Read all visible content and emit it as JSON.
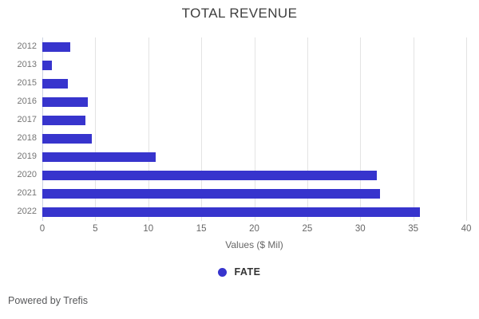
{
  "title": "TOTAL REVENUE",
  "footer_text": "Powered by Trefis",
  "colors": {
    "bar": "#3734cd",
    "grid": "#e3e3e3",
    "zero_axis": "#ccd3e3",
    "title_text": "#3e3e3e",
    "tick_text": "#666666",
    "y_label_text": "#757575"
  },
  "legend": {
    "label": "FATE",
    "dot_icon": "circle"
  },
  "chart_data": {
    "type": "bar",
    "orientation": "horizontal",
    "title": "TOTAL REVENUE",
    "categories": [
      "2012",
      "2013",
      "2015",
      "2016",
      "2017",
      "2018",
      "2019",
      "2020",
      "2021",
      "2022"
    ],
    "series": [
      {
        "name": "FATE",
        "values": [
          2.6,
          0.9,
          2.4,
          4.3,
          4.1,
          4.7,
          10.7,
          31.6,
          31.9,
          35.6
        ]
      }
    ],
    "xlabel": "Values ($ Mil)",
    "ylabel": "",
    "xlim": [
      0,
      40
    ],
    "x_ticks": [
      0,
      5,
      10,
      15,
      20,
      25,
      30,
      35,
      40
    ],
    "grid": true,
    "legend_position": "bottom"
  }
}
